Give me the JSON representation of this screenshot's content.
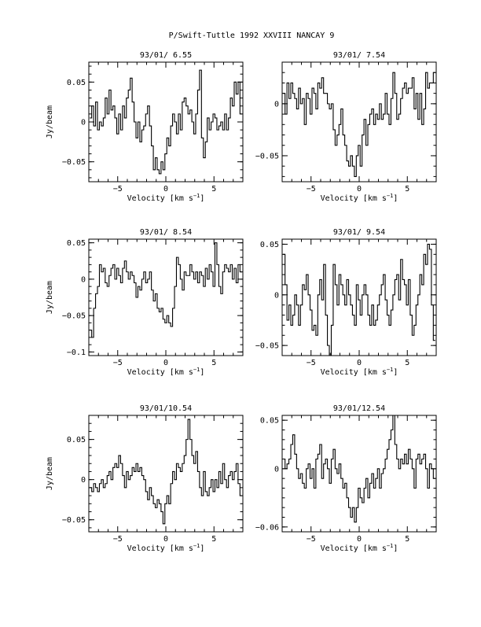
{
  "figure": {
    "title": "P/Swift-Tuttle 1992 XXVIII   NANCAY     9",
    "xlabel_main": "Velocity [km s",
    "xlabel_sup": "−1",
    "xlabel_close": "]",
    "ylabel": "Jy/beam"
  },
  "chart_data": [
    {
      "type": "line",
      "style": "step",
      "title": "93/01/ 6.55",
      "xlim": [
        -8,
        8
      ],
      "ylim": [
        -0.075,
        0.075
      ],
      "xticks": [
        -5,
        0,
        5
      ],
      "xtick_labels": [
        "−5",
        "0",
        "5"
      ],
      "yticks": [
        -0.05,
        0,
        0.05
      ],
      "ytick_labels": [
        "−0.05",
        "0",
        "0.05"
      ],
      "x_start": -7.8,
      "x_step": 0.2,
      "y": [
        0.005,
        0.02,
        -0.005,
        0.025,
        -0.01,
        0.0,
        -0.005,
        0.005,
        0.03,
        0.01,
        0.04,
        0.015,
        0.02,
        0.005,
        -0.015,
        0.01,
        -0.01,
        0.02,
        0.005,
        0.03,
        0.04,
        0.055,
        0.025,
        0.0,
        -0.02,
        0.0,
        -0.025,
        -0.01,
        -0.005,
        0.01,
        0.02,
        -0.005,
        -0.03,
        -0.06,
        -0.045,
        -0.06,
        -0.065,
        -0.05,
        -0.06,
        -0.04,
        -0.02,
        -0.03,
        -0.005,
        0.01,
        0.0,
        -0.015,
        0.01,
        -0.01,
        0.025,
        0.03,
        0.02,
        0.01,
        0.015,
        0.0,
        -0.015,
        0.01,
        0.04,
        0.065,
        -0.02,
        -0.045,
        -0.025,
        0.005,
        -0.01,
        0.0,
        0.01,
        0.005,
        -0.01,
        -0.005,
        0.0,
        -0.01,
        0.01,
        -0.01,
        0.005,
        0.03,
        0.02,
        0.05,
        0.035,
        0.05,
        0.01
      ]
    },
    {
      "type": "line",
      "style": "step",
      "title": "93/01/ 7.54",
      "xlim": [
        -8,
        8
      ],
      "ylim": [
        -0.075,
        0.04
      ],
      "xticks": [
        -5,
        0,
        5
      ],
      "xtick_labels": [
        "−5",
        "0",
        "5"
      ],
      "yticks": [
        -0.05,
        0
      ],
      "ytick_labels": [
        "−0.05",
        "0"
      ],
      "x_start": -7.8,
      "x_step": 0.2,
      "y": [
        0.01,
        -0.01,
        0.02,
        0.005,
        0.02,
        0.01,
        0.005,
        -0.005,
        0.015,
        0.0,
        0.005,
        -0.02,
        0.01,
        0.005,
        -0.01,
        0.015,
        0.01,
        -0.005,
        0.02,
        0.015,
        0.025,
        0.01,
        0.01,
        0.0,
        -0.005,
        0.0,
        -0.025,
        -0.04,
        -0.03,
        -0.02,
        -0.005,
        -0.03,
        -0.04,
        -0.055,
        -0.06,
        -0.05,
        -0.06,
        -0.07,
        -0.05,
        -0.04,
        -0.06,
        -0.03,
        -0.015,
        -0.04,
        -0.02,
        -0.01,
        -0.005,
        -0.02,
        -0.01,
        -0.015,
        0.0,
        -0.015,
        -0.01,
        0.01,
        -0.01,
        -0.02,
        0.005,
        0.03,
        0.01,
        -0.015,
        -0.01,
        0.005,
        0.015,
        0.02,
        0.01,
        0.015,
        0.015,
        0.025,
        -0.005,
        0.01,
        -0.015,
        0.01,
        -0.02,
        -0.005,
        0.03,
        0.015,
        0.02,
        0.02,
        0.03
      ]
    },
    {
      "type": "line",
      "style": "step",
      "title": "93/01/ 8.54",
      "xlim": [
        -8,
        8
      ],
      "ylim": [
        -0.105,
        0.055
      ],
      "xticks": [
        -5,
        0,
        5
      ],
      "xtick_labels": [
        "−5",
        "0",
        "5"
      ],
      "yticks": [
        -0.1,
        -0.05,
        0,
        0.05
      ],
      "ytick_labels": [
        "−0.1",
        "−0.05",
        "0",
        "0.05"
      ],
      "x_start": -7.8,
      "x_step": 0.2,
      "y": [
        -0.07,
        -0.08,
        -0.04,
        -0.02,
        -0.01,
        0.02,
        0.01,
        0.015,
        -0.005,
        -0.01,
        0.005,
        0.015,
        0.02,
        0.0,
        0.015,
        0.005,
        -0.005,
        0.015,
        0.025,
        0.01,
        0.0,
        0.01,
        0.005,
        -0.005,
        -0.025,
        -0.01,
        -0.015,
        0.0,
        0.01,
        -0.005,
        0.0,
        0.01,
        -0.015,
        -0.03,
        -0.02,
        -0.04,
        -0.045,
        -0.04,
        -0.055,
        -0.06,
        -0.05,
        -0.06,
        -0.065,
        -0.04,
        -0.01,
        0.03,
        0.02,
        0.0,
        -0.015,
        0.01,
        0.005,
        0.005,
        0.02,
        0.01,
        0.0,
        0.01,
        -0.005,
        0.01,
        0.005,
        -0.01,
        0.015,
        0.0,
        0.02,
        0.01,
        -0.01,
        0.05,
        0.02,
        -0.01,
        -0.02,
        0.01,
        0.02,
        0.015,
        0.01,
        0.02,
        0.0,
        0.015,
        -0.005,
        0.02,
        0.01
      ]
    },
    {
      "type": "line",
      "style": "step",
      "title": "93/01/ 9.54",
      "xlim": [
        -8,
        8
      ],
      "ylim": [
        -0.06,
        0.055
      ],
      "xticks": [
        -5,
        0,
        5
      ],
      "xtick_labels": [
        "−5",
        "0",
        "5"
      ],
      "yticks": [
        -0.05,
        0,
        0.05
      ],
      "ytick_labels": [
        "−0.05",
        "0",
        "0.05"
      ],
      "x_start": -7.8,
      "x_step": 0.2,
      "y": [
        0.04,
        0.01,
        -0.025,
        -0.01,
        -0.03,
        -0.02,
        0.0,
        -0.01,
        -0.03,
        -0.01,
        0.01,
        0.005,
        0.02,
        0.0,
        -0.015,
        -0.035,
        -0.03,
        -0.04,
        0.0,
        0.015,
        -0.005,
        0.03,
        -0.02,
        -0.05,
        -0.06,
        -0.03,
        0.03,
        0.01,
        -0.01,
        0.02,
        0.01,
        0.0,
        -0.01,
        0.015,
        0.0,
        -0.01,
        -0.02,
        -0.03,
        0.01,
        -0.005,
        -0.02,
        0.0,
        0.01,
        0.0,
        -0.02,
        -0.03,
        -0.01,
        -0.03,
        -0.025,
        -0.01,
        0.0,
        0.01,
        0.02,
        -0.005,
        -0.02,
        -0.03,
        -0.015,
        0.0,
        0.015,
        0.02,
        -0.005,
        0.035,
        0.015,
        0.01,
        -0.01,
        0.015,
        -0.02,
        -0.04,
        -0.03,
        -0.01,
        0.0,
        0.02,
        0.01,
        0.04,
        0.03,
        0.05,
        0.045,
        -0.01,
        -0.045
      ]
    },
    {
      "type": "line",
      "style": "step",
      "title": "93/01/10.54",
      "xlim": [
        -8,
        8
      ],
      "ylim": [
        -0.065,
        0.08
      ],
      "xticks": [
        -5,
        0,
        5
      ],
      "xtick_labels": [
        "−5",
        "0",
        "5"
      ],
      "yticks": [
        -0.05,
        0,
        0.05
      ],
      "ytick_labels": [
        "−0.05",
        "0",
        "0.05"
      ],
      "x_start": -7.8,
      "x_step": 0.2,
      "y": [
        -0.01,
        -0.015,
        -0.005,
        -0.01,
        -0.015,
        -0.005,
        0.0,
        -0.01,
        -0.005,
        0.005,
        0.01,
        0.0,
        0.015,
        0.02,
        0.015,
        0.03,
        0.02,
        0.005,
        -0.01,
        0.01,
        0.0,
        0.005,
        0.015,
        0.01,
        0.02,
        0.01,
        0.015,
        0.005,
        0.0,
        -0.015,
        -0.025,
        -0.01,
        -0.02,
        -0.03,
        -0.035,
        -0.025,
        -0.03,
        -0.04,
        -0.055,
        -0.03,
        -0.02,
        -0.03,
        -0.005,
        0.01,
        0.0,
        0.02,
        0.015,
        0.01,
        0.02,
        0.03,
        0.05,
        0.075,
        0.05,
        0.03,
        0.02,
        0.035,
        0.01,
        -0.01,
        -0.02,
        0.01,
        -0.015,
        -0.02,
        -0.01,
        0.0,
        -0.015,
        0.0,
        -0.01,
        0.01,
        -0.005,
        0.02,
        0.0,
        -0.01,
        0.005,
        0.01,
        0.0,
        0.01,
        0.02,
        -0.005,
        -0.02
      ]
    },
    {
      "type": "line",
      "style": "step",
      "title": "93/01/12.54",
      "xlim": [
        -8,
        8
      ],
      "ylim": [
        -0.065,
        0.055
      ],
      "xticks": [
        -5,
        0,
        5
      ],
      "xtick_labels": [
        "−5",
        "0",
        "5"
      ],
      "yticks": [
        -0.06,
        0,
        0.05
      ],
      "ytick_labels": [
        "−0.06",
        "0",
        "0.05"
      ],
      "x_start": -7.8,
      "x_step": 0.2,
      "y": [
        0.01,
        0.0,
        0.005,
        0.01,
        0.025,
        0.035,
        0.015,
        0.0,
        -0.01,
        -0.005,
        -0.015,
        -0.02,
        0.0,
        0.005,
        -0.01,
        0.0,
        -0.02,
        0.01,
        0.015,
        0.025,
        -0.01,
        0.005,
        0.01,
        0.0,
        -0.015,
        0.01,
        0.02,
        0.0,
        -0.005,
        0.005,
        -0.01,
        -0.02,
        -0.015,
        -0.03,
        -0.04,
        -0.05,
        -0.04,
        -0.055,
        -0.04,
        -0.02,
        -0.03,
        -0.035,
        -0.02,
        -0.01,
        -0.03,
        -0.015,
        -0.005,
        -0.02,
        -0.01,
        0.0,
        -0.02,
        -0.005,
        0.0,
        0.01,
        0.02,
        0.03,
        0.04,
        0.055,
        0.025,
        0.01,
        0.0,
        0.01,
        0.005,
        0.015,
        0.005,
        0.02,
        0.01,
        0.0,
        -0.02,
        0.01,
        0.015,
        0.005,
        0.01,
        0.015,
        0.0,
        -0.02,
        0.005,
        0.0,
        -0.01
      ]
    }
  ]
}
